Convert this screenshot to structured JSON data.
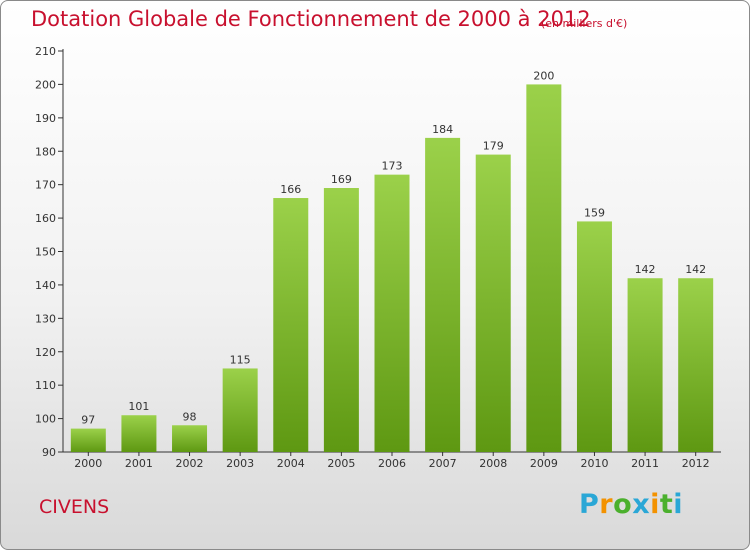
{
  "title": "Dotation Globale de Fonctionnement de 2000 à 2012",
  "subtitle": "(en milliers d'€)",
  "city": "CIVENS",
  "logo": {
    "letters": [
      {
        "ch": "P",
        "color": "#2aa7d6"
      },
      {
        "ch": "r",
        "color": "#f39200"
      },
      {
        "ch": "o",
        "color": "#4bb02d"
      },
      {
        "ch": "x",
        "color": "#2aa7d6"
      },
      {
        "ch": "i",
        "color": "#f39200"
      },
      {
        "ch": "t",
        "color": "#4bb02d"
      },
      {
        "ch": "i",
        "color": "#2aa7d6"
      }
    ]
  },
  "colors": {
    "title": "#c8102e",
    "bar_top": "#9bd14a",
    "bar_bottom": "#5e9812",
    "axis": "#333333"
  },
  "chart_data": {
    "type": "bar",
    "categories": [
      "2000",
      "2001",
      "2002",
      "2003",
      "2004",
      "2005",
      "2006",
      "2007",
      "2008",
      "2009",
      "2010",
      "2011",
      "2012"
    ],
    "values": [
      97,
      101,
      98,
      115,
      166,
      169,
      173,
      184,
      179,
      200,
      159,
      142,
      142
    ],
    "yticks": [
      90,
      100,
      110,
      120,
      130,
      140,
      150,
      160,
      170,
      180,
      190,
      200,
      210
    ],
    "ylim": [
      90,
      210
    ],
    "grid": false,
    "legend": "none"
  }
}
